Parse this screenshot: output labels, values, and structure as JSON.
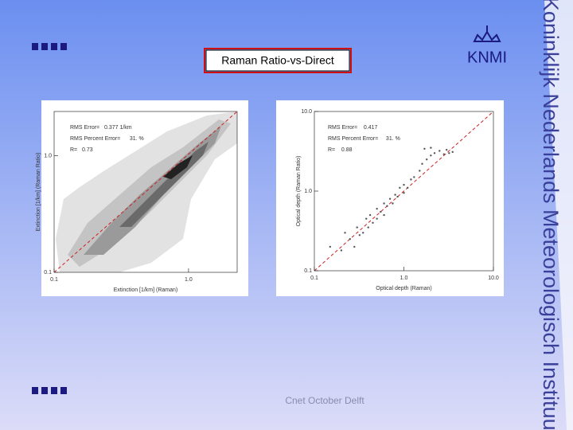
{
  "header": {
    "title": "Raman Ratio-vs-Direct",
    "logo": "KNMI",
    "institute": "Koninklijk Nederlands Meteorologisch Instituut"
  },
  "footer": "Cnet October Delft",
  "chart_data": [
    {
      "type": "contour",
      "xlabel": "Extinction [1/km] (Raman)",
      "ylabel": "Extinction [1/km] (Raman Ratio)",
      "stats": [
        "RMS Error=   0.377 1/km",
        "RMS Percent Error=      31. %",
        "R=   0.73"
      ],
      "log": true,
      "xlim": [
        0.1,
        2.3
      ],
      "ylim": [
        0.1,
        2.4
      ],
      "xticks": [
        0.1,
        {
          "value": 1,
          "label": "1.0"
        }
      ],
      "yticks": [
        0.1,
        {
          "value": 1,
          "label": "1.0"
        }
      ]
    },
    {
      "type": "scatter",
      "xlabel": "Optical depth (Raman)",
      "ylabel": "Optical depth (Raman Ratio)",
      "stats": [
        "RMS Error=    0.417",
        "RMS Percent Error=     31. %",
        "R=    0.88"
      ],
      "log": true,
      "xlim": [
        0.1,
        10
      ],
      "ylim": [
        0.1,
        10
      ],
      "color": "#555555",
      "xticks": [
        0.1,
        {
          "value": 1,
          "label": "1.0"
        },
        {
          "value": 10,
          "label": "10.0"
        }
      ],
      "yticks": [
        0.1,
        {
          "value": 1,
          "label": "1.0"
        },
        {
          "value": 10,
          "label": "10.0"
        }
      ],
      "x": [
        0.15,
        0.2,
        0.22,
        0.25,
        0.28,
        0.3,
        0.32,
        0.35,
        0.38,
        0.4,
        0.42,
        0.45,
        0.5,
        0.5,
        0.55,
        0.6,
        0.6,
        0.65,
        0.7,
        0.75,
        0.8,
        0.85,
        0.9,
        1.0,
        1.0,
        1.1,
        1.2,
        1.3,
        1.5,
        1.6,
        1.8,
        2.0,
        2.2,
        2.5,
        2.8,
        3.0,
        3.2,
        3.5,
        2.0,
        1.7
      ],
      "y": [
        0.2,
        0.18,
        0.3,
        0.25,
        0.2,
        0.35,
        0.28,
        0.3,
        0.45,
        0.35,
        0.5,
        0.4,
        0.45,
        0.6,
        0.55,
        0.5,
        0.7,
        0.65,
        0.8,
        0.7,
        0.9,
        0.85,
        1.1,
        0.95,
        1.2,
        1.1,
        1.4,
        1.5,
        1.8,
        2.2,
        2.5,
        2.8,
        3.0,
        3.2,
        2.9,
        3.3,
        3.0,
        3.1,
        3.5,
        3.4
      ]
    }
  ]
}
